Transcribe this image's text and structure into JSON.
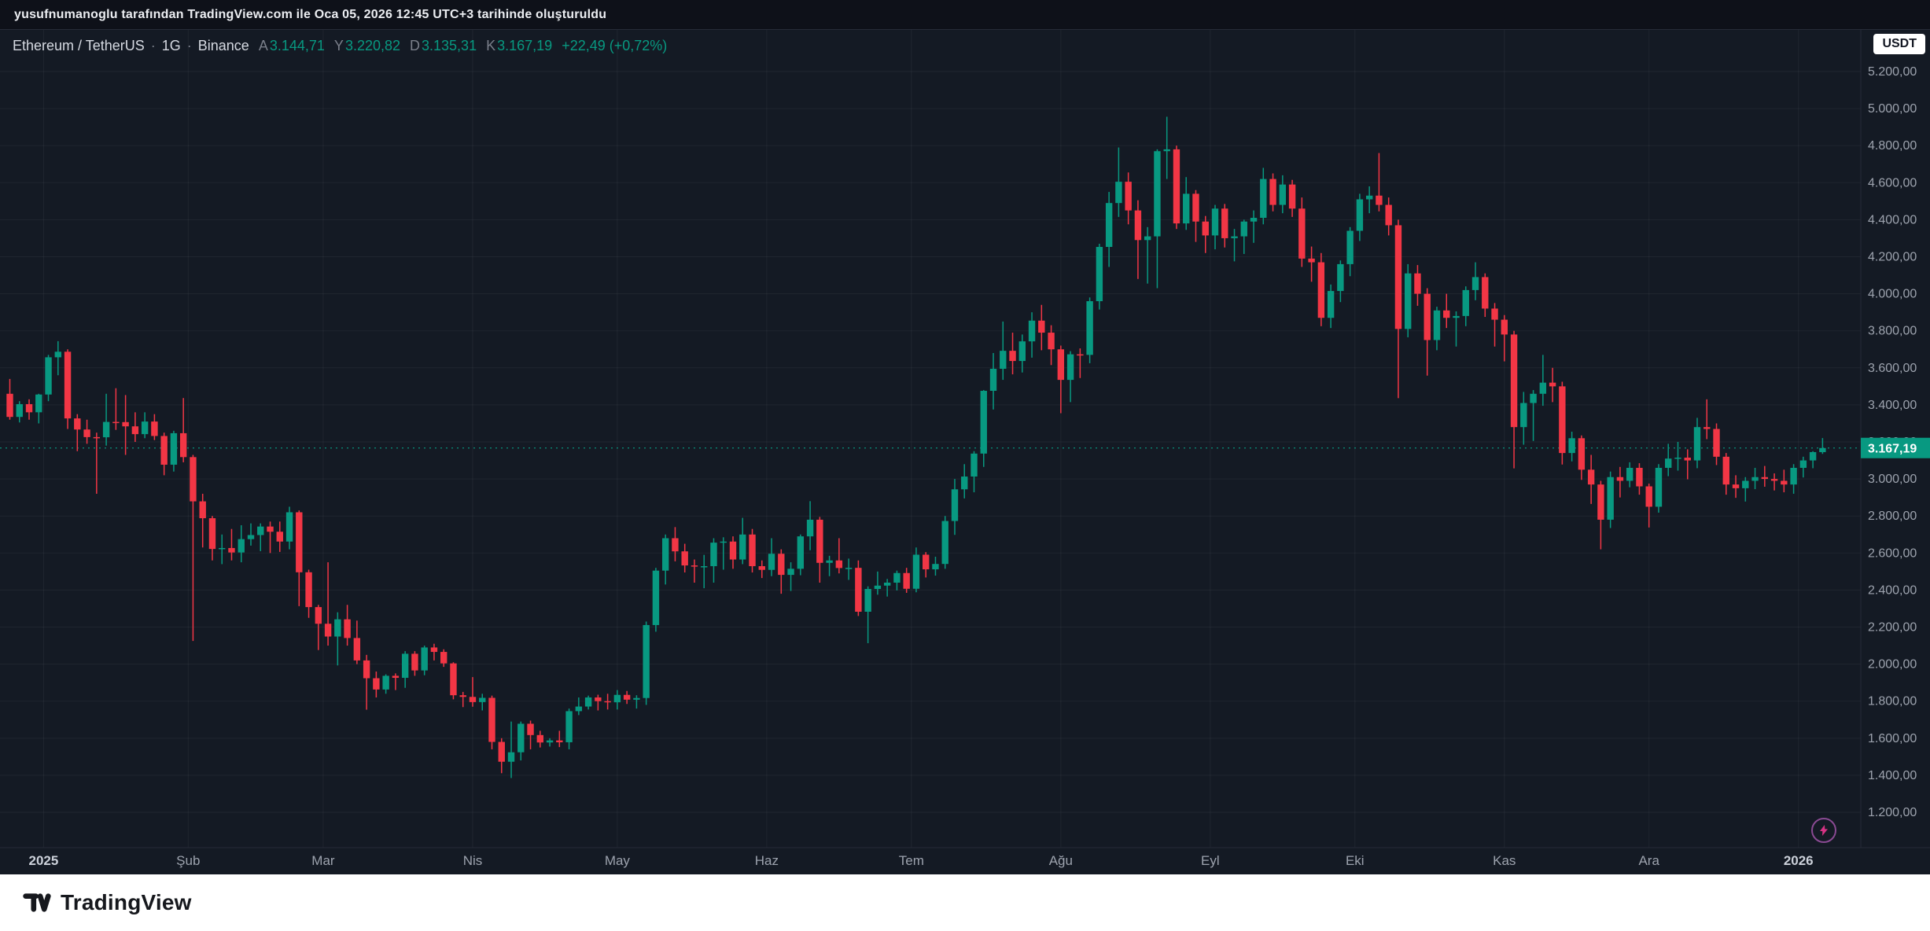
{
  "attribution": {
    "text": "yusufnumanoglu tarafından TradingView.com ile Oca 05, 2026 12:45 UTC+3 tarihinde oluşturuldu"
  },
  "header": {
    "title": "Ethereum / TetherUS",
    "sep": "·",
    "interval": "1G",
    "exchange": "Binance",
    "ohlc": [
      {
        "key": "A",
        "value": "3.144,71"
      },
      {
        "key": "Y",
        "value": "3.220,82"
      },
      {
        "key": "D",
        "value": "3.135,31"
      },
      {
        "key": "K",
        "value": "3.167,19"
      }
    ],
    "change": "+22,49 (+0,72%)",
    "currency": "USDT"
  },
  "chart_data": {
    "type": "candlestick",
    "title": "Ethereum / TetherUS · 1G · Binance",
    "symbol": "ETHUSDT",
    "interval": "1G (günlük)",
    "exchange": "Binance",
    "currency": "USDT",
    "y_range": [
      1009,
      5425
    ],
    "grid": true,
    "legend_position": "top-left",
    "y_ticks": [
      {
        "v": 5200,
        "label": "5.200,00"
      },
      {
        "v": 5000,
        "label": "5.000,00"
      },
      {
        "v": 4800,
        "label": "4.800,00"
      },
      {
        "v": 4600,
        "label": "4.600,00"
      },
      {
        "v": 4400,
        "label": "4.400,00"
      },
      {
        "v": 4200,
        "label": "4.200,00"
      },
      {
        "v": 4000,
        "label": "4.000,00"
      },
      {
        "v": 3800,
        "label": "3.800,00"
      },
      {
        "v": 3600,
        "label": "3.600,00"
      },
      {
        "v": 3400,
        "label": "3.400,00"
      },
      {
        "v": 3200,
        "label": "3.200,00"
      },
      {
        "v": 3000,
        "label": "3.000,00"
      },
      {
        "v": 2800,
        "label": "2.800,00"
      },
      {
        "v": 2600,
        "label": "2.600,00"
      },
      {
        "v": 2400,
        "label": "2.400,00"
      },
      {
        "v": 2200,
        "label": "2.200,00"
      },
      {
        "v": 2000,
        "label": "2.000,00"
      },
      {
        "v": 1800,
        "label": "1.800,00"
      },
      {
        "v": 1600,
        "label": "1.600,00"
      },
      {
        "v": 1400,
        "label": "1.400,00"
      },
      {
        "v": 1200,
        "label": "1.200,00"
      }
    ],
    "x_ticks": [
      {
        "label": "2025",
        "i": 3.5,
        "major": true
      },
      {
        "label": "Şub",
        "i": 18.5
      },
      {
        "label": "Mar",
        "i": 32.5
      },
      {
        "label": "Nis",
        "i": 48
      },
      {
        "label": "May",
        "i": 63
      },
      {
        "label": "Haz",
        "i": 78.5
      },
      {
        "label": "Tem",
        "i": 93.5
      },
      {
        "label": "Ağu",
        "i": 109
      },
      {
        "label": "Eyl",
        "i": 124.5
      },
      {
        "label": "Eki",
        "i": 139.5
      },
      {
        "label": "Kas",
        "i": 155
      },
      {
        "label": "Ara",
        "i": 170
      },
      {
        "label": "2026",
        "i": 185.5,
        "major": true
      }
    ],
    "last_price": {
      "v": 3167.19,
      "label": "3.167,19"
    },
    "candles": [
      [
        3460,
        3540,
        3320,
        3335
      ],
      [
        3335,
        3420,
        3305,
        3404
      ],
      [
        3404,
        3430,
        3320,
        3360
      ],
      [
        3360,
        3460,
        3300,
        3456
      ],
      [
        3456,
        3670,
        3420,
        3657
      ],
      [
        3657,
        3744,
        3560,
        3687
      ],
      [
        3687,
        3700,
        3270,
        3327
      ],
      [
        3327,
        3350,
        3150,
        3267
      ],
      [
        3267,
        3320,
        3190,
        3226
      ],
      [
        3226,
        3250,
        2920,
        3225
      ],
      [
        3225,
        3460,
        3180,
        3308
      ],
      [
        3308,
        3490,
        3265,
        3307
      ],
      [
        3307,
        3453,
        3130,
        3284
      ],
      [
        3284,
        3360,
        3200,
        3242
      ],
      [
        3242,
        3360,
        3220,
        3310
      ],
      [
        3310,
        3350,
        3210,
        3232
      ],
      [
        3232,
        3250,
        3020,
        3077
      ],
      [
        3077,
        3260,
        3040,
        3247
      ],
      [
        3247,
        3437,
        3090,
        3118
      ],
      [
        3118,
        3130,
        2125,
        2879
      ],
      [
        2879,
        2920,
        2630,
        2788
      ],
      [
        2788,
        2800,
        2560,
        2622
      ],
      [
        2622,
        2700,
        2540,
        2627
      ],
      [
        2627,
        2730,
        2560,
        2603
      ],
      [
        2603,
        2750,
        2550,
        2675
      ],
      [
        2675,
        2760,
        2640,
        2697
      ],
      [
        2697,
        2760,
        2610,
        2743
      ],
      [
        2743,
        2770,
        2600,
        2715
      ],
      [
        2715,
        2770,
        2606,
        2662
      ],
      [
        2662,
        2850,
        2620,
        2820
      ],
      [
        2820,
        2830,
        2313,
        2496
      ],
      [
        2496,
        2510,
        2250,
        2308
      ],
      [
        2308,
        2320,
        2076,
        2218
      ],
      [
        2218,
        2550,
        2100,
        2149
      ],
      [
        2149,
        2280,
        1993,
        2242
      ],
      [
        2242,
        2320,
        2100,
        2141
      ],
      [
        2141,
        2235,
        2000,
        2020
      ],
      [
        2020,
        2050,
        1754,
        1924
      ],
      [
        1924,
        1960,
        1820,
        1863
      ],
      [
        1863,
        1945,
        1840,
        1937
      ],
      [
        1937,
        1950,
        1860,
        1926
      ],
      [
        1926,
        2070,
        1872,
        2056
      ],
      [
        2056,
        2070,
        1937,
        1966
      ],
      [
        1966,
        2100,
        1940,
        2090
      ],
      [
        2090,
        2110,
        2020,
        2066
      ],
      [
        2066,
        2080,
        1985,
        2004
      ],
      [
        2004,
        2010,
        1810,
        1832
      ],
      [
        1832,
        1850,
        1768,
        1823
      ],
      [
        1823,
        1930,
        1770,
        1795
      ],
      [
        1795,
        1840,
        1750,
        1818
      ],
      [
        1818,
        1830,
        1540,
        1580
      ],
      [
        1580,
        1600,
        1411,
        1473
      ],
      [
        1473,
        1690,
        1385,
        1524
      ],
      [
        1524,
        1690,
        1480,
        1678
      ],
      [
        1678,
        1695,
        1540,
        1617
      ],
      [
        1617,
        1640,
        1550,
        1577
      ],
      [
        1577,
        1600,
        1555,
        1588
      ],
      [
        1588,
        1640,
        1552,
        1578
      ],
      [
        1578,
        1760,
        1540,
        1746
      ],
      [
        1746,
        1820,
        1725,
        1771
      ],
      [
        1771,
        1830,
        1755,
        1820
      ],
      [
        1820,
        1835,
        1750,
        1800
      ],
      [
        1800,
        1840,
        1755,
        1794
      ],
      [
        1794,
        1860,
        1755,
        1834
      ],
      [
        1834,
        1855,
        1785,
        1808
      ],
      [
        1808,
        1832,
        1760,
        1817
      ],
      [
        1817,
        2230,
        1780,
        2211
      ],
      [
        2211,
        2520,
        2175,
        2505
      ],
      [
        2505,
        2700,
        2430,
        2680
      ],
      [
        2680,
        2740,
        2555,
        2609
      ],
      [
        2609,
        2650,
        2495,
        2533
      ],
      [
        2533,
        2565,
        2440,
        2527
      ],
      [
        2527,
        2590,
        2410,
        2529
      ],
      [
        2529,
        2680,
        2440,
        2656
      ],
      [
        2656,
        2685,
        2510,
        2662
      ],
      [
        2662,
        2690,
        2515,
        2565
      ],
      [
        2565,
        2790,
        2540,
        2700
      ],
      [
        2700,
        2730,
        2495,
        2529
      ],
      [
        2529,
        2560,
        2465,
        2509
      ],
      [
        2509,
        2680,
        2475,
        2596
      ],
      [
        2596,
        2620,
        2380,
        2482
      ],
      [
        2482,
        2550,
        2395,
        2515
      ],
      [
        2515,
        2700,
        2480,
        2690
      ],
      [
        2690,
        2880,
        2615,
        2780
      ],
      [
        2780,
        2795,
        2440,
        2547
      ],
      [
        2547,
        2585,
        2475,
        2560
      ],
      [
        2560,
        2680,
        2490,
        2519
      ],
      [
        2519,
        2570,
        2455,
        2520
      ],
      [
        2520,
        2560,
        2260,
        2283
      ],
      [
        2283,
        2420,
        2113,
        2406
      ],
      [
        2406,
        2500,
        2375,
        2424
      ],
      [
        2424,
        2460,
        2365,
        2440
      ],
      [
        2440,
        2505,
        2398,
        2492
      ],
      [
        2492,
        2520,
        2385,
        2407
      ],
      [
        2407,
        2630,
        2388,
        2591
      ],
      [
        2591,
        2605,
        2468,
        2512
      ],
      [
        2512,
        2580,
        2478,
        2541
      ],
      [
        2541,
        2800,
        2515,
        2773
      ],
      [
        2773,
        3000,
        2698,
        2944
      ],
      [
        2944,
        3080,
        2895,
        3013
      ],
      [
        3013,
        3150,
        2928,
        3137
      ],
      [
        3137,
        3480,
        3065,
        3476
      ],
      [
        3476,
        3680,
        3375,
        3595
      ],
      [
        3595,
        3850,
        3535,
        3692
      ],
      [
        3692,
        3790,
        3565,
        3637
      ],
      [
        3637,
        3780,
        3575,
        3743
      ],
      [
        3743,
        3900,
        3655,
        3855
      ],
      [
        3855,
        3940,
        3695,
        3790
      ],
      [
        3790,
        3830,
        3615,
        3700
      ],
      [
        3700,
        3720,
        3355,
        3535
      ],
      [
        3535,
        3690,
        3415,
        3673
      ],
      [
        3673,
        3705,
        3545,
        3670
      ],
      [
        3670,
        3980,
        3625,
        3960
      ],
      [
        3960,
        4270,
        3915,
        4253
      ],
      [
        4253,
        4550,
        4145,
        4490
      ],
      [
        4490,
        4790,
        4415,
        4605
      ],
      [
        4605,
        4655,
        4375,
        4450
      ],
      [
        4450,
        4505,
        4080,
        4290
      ],
      [
        4290,
        4360,
        4055,
        4310
      ],
      [
        4310,
        4780,
        4030,
        4770
      ],
      [
        4770,
        4956,
        4620,
        4780
      ],
      [
        4780,
        4800,
        4350,
        4380
      ],
      [
        4380,
        4630,
        4345,
        4540
      ],
      [
        4540,
        4560,
        4280,
        4390
      ],
      [
        4390,
        4420,
        4220,
        4315
      ],
      [
        4315,
        4480,
        4240,
        4460
      ],
      [
        4460,
        4485,
        4250,
        4300
      ],
      [
        4300,
        4350,
        4175,
        4310
      ],
      [
        4310,
        4400,
        4215,
        4390
      ],
      [
        4390,
        4450,
        4275,
        4410
      ],
      [
        4410,
        4680,
        4375,
        4620
      ],
      [
        4620,
        4650,
        4445,
        4480
      ],
      [
        4480,
        4640,
        4435,
        4590
      ],
      [
        4590,
        4615,
        4415,
        4460
      ],
      [
        4460,
        4520,
        4145,
        4190
      ],
      [
        4190,
        4255,
        4065,
        4170
      ],
      [
        4170,
        4220,
        3825,
        3870
      ],
      [
        3870,
        4050,
        3815,
        4015
      ],
      [
        4015,
        4180,
        3955,
        4160
      ],
      [
        4160,
        4360,
        4095,
        4340
      ],
      [
        4340,
        4540,
        4285,
        4510
      ],
      [
        4510,
        4580,
        4435,
        4530
      ],
      [
        4530,
        4760,
        4445,
        4480
      ],
      [
        4480,
        4520,
        4315,
        4370
      ],
      [
        4370,
        4400,
        3436,
        3810
      ],
      [
        3810,
        4160,
        3765,
        4110
      ],
      [
        4110,
        4155,
        3935,
        4000
      ],
      [
        4000,
        4030,
        3558,
        3750
      ],
      [
        3750,
        3930,
        3695,
        3910
      ],
      [
        3910,
        4000,
        3815,
        3870
      ],
      [
        3870,
        3905,
        3715,
        3880
      ],
      [
        3880,
        4040,
        3825,
        4020
      ],
      [
        4020,
        4170,
        3965,
        4090
      ],
      [
        4090,
        4110,
        3875,
        3920
      ],
      [
        3920,
        3950,
        3715,
        3860
      ],
      [
        3860,
        3885,
        3635,
        3780
      ],
      [
        3780,
        3800,
        3057,
        3280
      ],
      [
        3280,
        3470,
        3185,
        3410
      ],
      [
        3410,
        3480,
        3205,
        3460
      ],
      [
        3460,
        3670,
        3395,
        3520
      ],
      [
        3520,
        3600,
        3415,
        3500
      ],
      [
        3500,
        3525,
        3078,
        3140
      ],
      [
        3140,
        3255,
        3095,
        3220
      ],
      [
        3220,
        3235,
        2995,
        3050
      ],
      [
        3050,
        3130,
        2865,
        2970
      ],
      [
        2970,
        2990,
        2620,
        2780
      ],
      [
        2780,
        3040,
        2735,
        3010
      ],
      [
        3010,
        3065,
        2900,
        2990
      ],
      [
        2990,
        3090,
        2955,
        3060
      ],
      [
        3060,
        3085,
        2915,
        2960
      ],
      [
        2960,
        2975,
        2738,
        2850
      ],
      [
        2850,
        3080,
        2818,
        3060
      ],
      [
        3060,
        3190,
        3015,
        3110
      ],
      [
        3110,
        3200,
        3045,
        3115
      ],
      [
        3115,
        3160,
        2998,
        3100
      ],
      [
        3100,
        3330,
        3058,
        3280
      ],
      [
        3280,
        3430,
        3215,
        3270
      ],
      [
        3270,
        3300,
        3075,
        3120
      ],
      [
        3120,
        3140,
        2915,
        2970
      ],
      [
        2970,
        3020,
        2898,
        2950
      ],
      [
        2950,
        3010,
        2878,
        2990
      ],
      [
        2990,
        3060,
        2945,
        3010
      ],
      [
        3010,
        3070,
        2958,
        3000
      ],
      [
        3000,
        3030,
        2938,
        2990
      ],
      [
        2990,
        3050,
        2928,
        2970
      ],
      [
        2970,
        3080,
        2920,
        3060
      ],
      [
        3060,
        3120,
        3008,
        3100
      ],
      [
        3100,
        3150,
        3058,
        3145
      ],
      [
        3144.71,
        3220.82,
        3135.31,
        3167.19
      ]
    ]
  },
  "footer": {
    "brand": "TradingView"
  },
  "colors": {
    "bg": "#141a24",
    "topbar_bg": "#0e1119",
    "topbar_text": "#eceef2",
    "up": "#089981",
    "down": "#f23645",
    "grid": "rgba(255,255,255,0.05)",
    "axis_text": "#9da3ae",
    "title_text": "#d6dae2",
    "muted_text": "#7a7f8a",
    "sep_line": "#262b38",
    "label_text": "#ffffff",
    "usdt_bg": "#ffffff",
    "usdt_text": "#131722",
    "footer_bg": "#ffffff",
    "footer_text": "#16181d",
    "flash": "#d63384",
    "flash_ring": "#8a4a93"
  }
}
